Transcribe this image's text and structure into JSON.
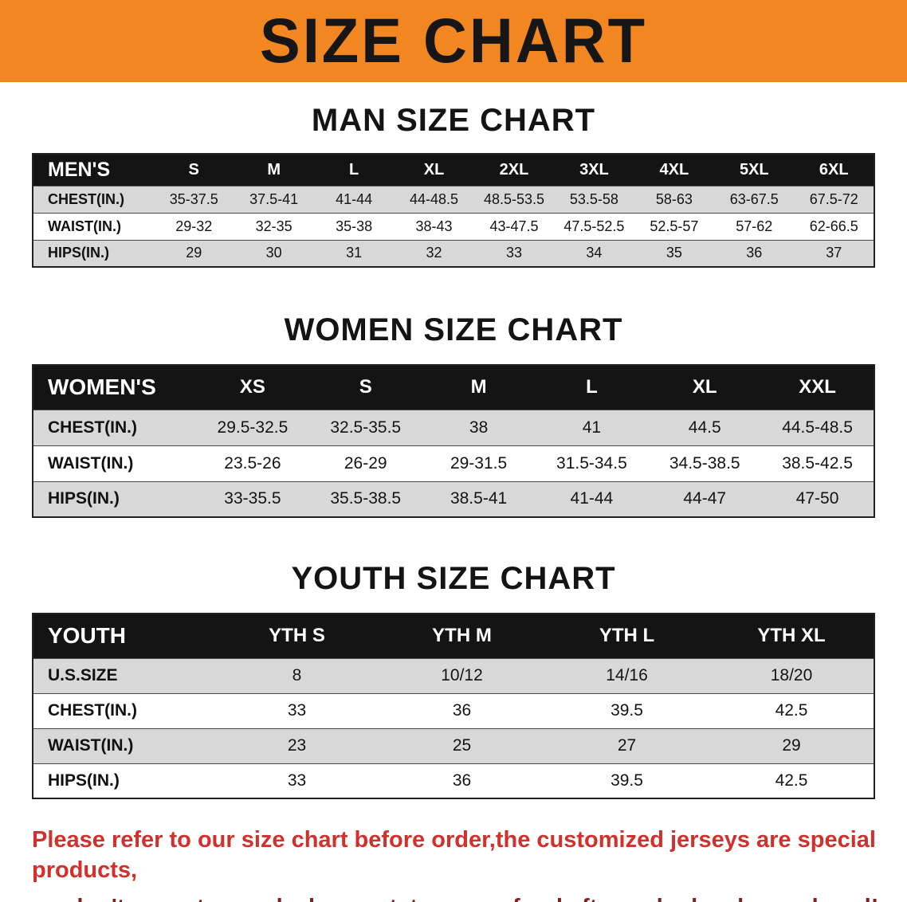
{
  "banner": {
    "title": "SIZE CHART"
  },
  "colors": {
    "banner_bg": "#f28722",
    "header_bg": "#141414",
    "row_shade": "#d8d8d8",
    "note_red": "#d0312d",
    "note_dark_red": "#82201a"
  },
  "men": {
    "title": "MAN SIZE CHART",
    "header": [
      "MEN'S",
      "S",
      "M",
      "L",
      "XL",
      "2XL",
      "3XL",
      "4XL",
      "5XL",
      "6XL"
    ],
    "rows": [
      {
        "label": "CHEST(IN.)",
        "values": [
          "35-37.5",
          "37.5-41",
          "41-44",
          "44-48.5",
          "48.5-53.5",
          "53.5-58",
          "58-63",
          "63-67.5",
          "67.5-72"
        ]
      },
      {
        "label": "WAIST(IN.)",
        "values": [
          "29-32",
          "32-35",
          "35-38",
          "38-43",
          "43-47.5",
          "47.5-52.5",
          "52.5-57",
          "57-62",
          "62-66.5"
        ]
      },
      {
        "label": "HIPS(IN.)",
        "values": [
          "29",
          "30",
          "31",
          "32",
          "33",
          "34",
          "35",
          "36",
          "37"
        ]
      }
    ]
  },
  "women": {
    "title": "WOMEN SIZE CHART",
    "header": [
      "WOMEN'S",
      "XS",
      "S",
      "M",
      "L",
      "XL",
      "XXL"
    ],
    "rows": [
      {
        "label": "CHEST(IN.)",
        "values": [
          "29.5-32.5",
          "32.5-35.5",
          "38",
          "41",
          "44.5",
          "44.5-48.5"
        ]
      },
      {
        "label": "WAIST(IN.)",
        "values": [
          "23.5-26",
          "26-29",
          "29-31.5",
          "31.5-34.5",
          "34.5-38.5",
          "38.5-42.5"
        ]
      },
      {
        "label": "HIPS(IN.)",
        "values": [
          "33-35.5",
          "35.5-38.5",
          "38.5-41",
          "41-44",
          "44-47",
          "47-50"
        ]
      }
    ]
  },
  "youth": {
    "title": "YOUTH SIZE CHART",
    "header": [
      "YOUTH",
      "YTH S",
      "YTH M",
      "YTH L",
      "YTH XL"
    ],
    "rows": [
      {
        "label": "U.S.SIZE",
        "values": [
          "8",
          "10/12",
          "14/16",
          "18/20"
        ]
      },
      {
        "label": "CHEST(IN.)",
        "values": [
          "33",
          "36",
          "39.5",
          "42.5"
        ]
      },
      {
        "label": "WAIST(IN.)",
        "values": [
          "23",
          "25",
          "27",
          "29"
        ]
      },
      {
        "label": "HIPS(IN.)",
        "values": [
          "33",
          "36",
          "39.5",
          "42.5"
        ]
      }
    ]
  },
  "note": {
    "line1": "Please refer to our size chart before order,the customized jerseys are special products,",
    "line2": "we don't accept cancel, change, teturn or refund after order has been placed!"
  }
}
